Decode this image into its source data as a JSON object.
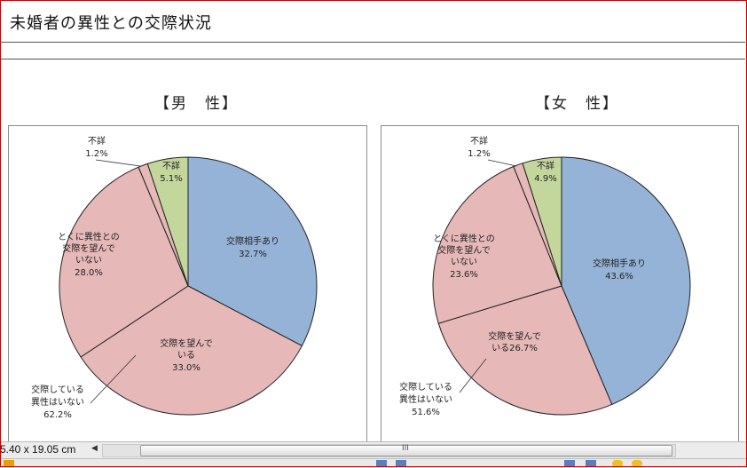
{
  "header": {
    "title": "未婚者の異性との交際状況"
  },
  "panels": {
    "male": {
      "title": "【男　性】"
    },
    "female": {
      "title": "【女　性】"
    }
  },
  "status": {
    "size_text": "5.40 x 19.05 cm",
    "scroll_grip": "III"
  },
  "colors": {
    "dating": "#95b3d7",
    "wanting": "#e6b9b8",
    "not_interested": "#e6b9b8",
    "unknown_small": "#e6b9b8",
    "unknown": "#c3d69b",
    "frame_border": "#c80000"
  },
  "chart_data": [
    {
      "type": "pie",
      "title": "【男　性】",
      "categories": [
        "交際相手あり",
        "交際を望んでいる",
        "とくに異性との交際を望んでいない",
        "不詳",
        "不詳"
      ],
      "values": [
        32.7,
        33.0,
        28.0,
        1.2,
        5.1
      ],
      "slice_labels": [
        {
          "lines": [
            "交際相手あり"
          ],
          "pct": "32.7%"
        },
        {
          "lines": [
            "交際を望んで",
            "いる"
          ],
          "pct": "33.0%"
        },
        {
          "lines": [
            "とくに異性との",
            "交際を望んで",
            "いない"
          ],
          "pct": "28.0%"
        },
        {
          "lines": [
            "不詳"
          ],
          "pct": "1.2%"
        },
        {
          "lines": [
            "不詳"
          ],
          "pct": "5.1%"
        }
      ],
      "annotation": {
        "lines": [
          "交際している",
          "異性はいない"
        ],
        "pct": "62.2%"
      }
    },
    {
      "type": "pie",
      "title": "【女　性】",
      "categories": [
        "交際相手あり",
        "交際を望んでいる",
        "とくに異性との交際を望んでいない",
        "不詳",
        "不詳"
      ],
      "values": [
        43.6,
        26.7,
        23.6,
        1.2,
        4.9
      ],
      "slice_labels": [
        {
          "lines": [
            "交際相手あり"
          ],
          "pct": "43.6%"
        },
        {
          "lines": [
            "交際を望んで",
            "いる26.7%"
          ],
          "pct": ""
        },
        {
          "lines": [
            "とくに異性との",
            "交際を望んで",
            "いない"
          ],
          "pct": "23.6%"
        },
        {
          "lines": [
            "不詳"
          ],
          "pct": "1.2%"
        },
        {
          "lines": [
            "不詳"
          ],
          "pct": "4.9%"
        }
      ],
      "annotation": {
        "lines": [
          "交際している",
          "異性はいない"
        ],
        "pct": "51.6%"
      }
    }
  ]
}
